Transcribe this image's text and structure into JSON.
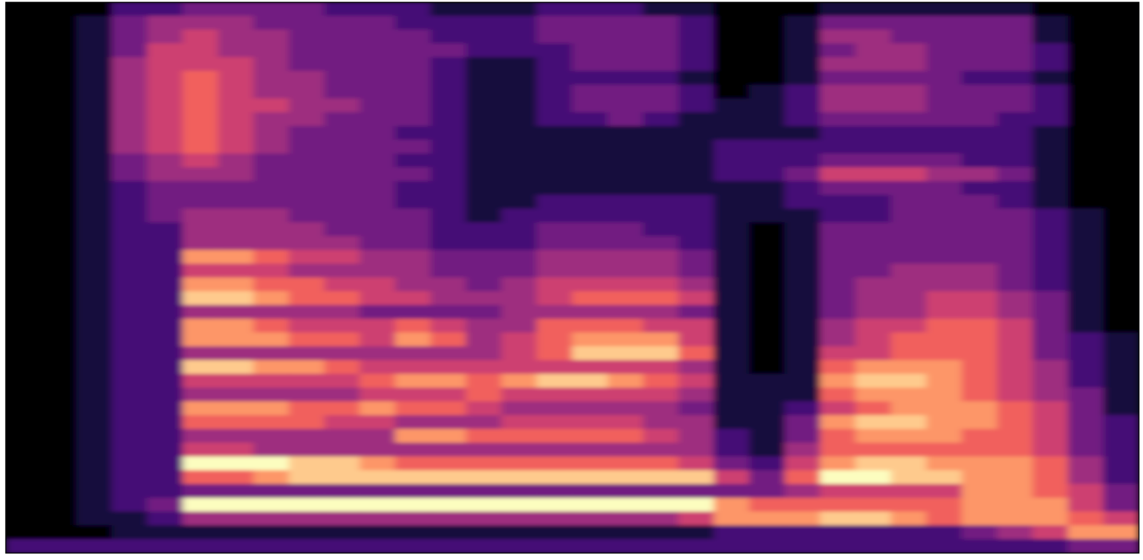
{
  "chart_data": {
    "type": "heatmap",
    "tick_labels": false,
    "zlim": [
      0,
      9
    ],
    "values": [
      [
        0,
        0,
        0,
        2,
        2,
        3,
        3,
        3,
        3,
        2,
        2,
        2,
        1,
        1,
        1,
        2,
        2,
        2,
        1,
        1,
        0,
        0,
        0,
        1,
        1,
        1,
        1,
        1,
        1,
        0,
        0,
        0
      ],
      [
        0,
        0,
        1,
        3,
        4,
        4,
        4,
        3,
        3,
        3,
        3,
        2,
        2,
        2,
        2,
        3,
        3,
        3,
        3,
        2,
        0,
        0,
        1,
        3,
        3,
        3,
        3,
        3,
        3,
        1,
        0,
        0
      ],
      [
        0,
        0,
        1,
        3,
        4,
        5,
        4,
        4,
        3,
        3,
        3,
        3,
        2,
        2,
        2,
        3,
        3,
        3,
        3,
        2,
        0,
        0,
        1,
        4,
        4,
        3,
        3,
        3,
        3,
        1,
        0,
        0
      ],
      [
        0,
        0,
        1,
        3,
        5,
        5,
        4,
        4,
        3,
        3,
        3,
        3,
        3,
        2,
        2,
        2,
        3,
        3,
        3,
        2,
        0,
        0,
        1,
        3,
        4,
        4,
        3,
        3,
        3,
        2,
        0,
        0
      ],
      [
        0,
        0,
        1,
        4,
        5,
        5,
        5,
        4,
        3,
        3,
        3,
        3,
        2,
        1,
        1,
        2,
        3,
        3,
        3,
        2,
        0,
        0,
        1,
        4,
        4,
        4,
        3,
        3,
        3,
        2,
        0,
        0
      ],
      [
        0,
        0,
        1,
        4,
        5,
        6,
        5,
        4,
        4,
        3,
        3,
        3,
        2,
        1,
        1,
        2,
        2,
        2,
        2,
        1,
        0,
        0,
        1,
        3,
        3,
        3,
        3,
        2,
        2,
        1,
        0,
        0
      ],
      [
        0,
        0,
        1,
        4,
        5,
        6,
        5,
        4,
        4,
        3,
        3,
        3,
        2,
        1,
        1,
        2,
        3,
        3,
        3,
        2,
        0,
        1,
        2,
        4,
        4,
        4,
        3,
        3,
        3,
        2,
        0,
        0
      ],
      [
        0,
        0,
        1,
        4,
        5,
        6,
        5,
        5,
        4,
        4,
        3,
        3,
        2,
        1,
        1,
        2,
        3,
        3,
        3,
        2,
        1,
        1,
        2,
        4,
        4,
        4,
        3,
        3,
        3,
        2,
        0,
        0
      ],
      [
        0,
        0,
        1,
        4,
        5,
        6,
        5,
        4,
        4,
        3,
        3,
        3,
        2,
        1,
        1,
        2,
        2,
        3,
        2,
        1,
        1,
        1,
        2,
        3,
        3,
        3,
        3,
        3,
        2,
        2,
        0,
        0
      ],
      [
        0,
        0,
        1,
        4,
        5,
        6,
        5,
        4,
        3,
        3,
        3,
        2,
        2,
        1,
        1,
        1,
        1,
        1,
        1,
        1,
        1,
        1,
        1,
        2,
        2,
        2,
        2,
        2,
        2,
        1,
        0,
        0
      ],
      [
        0,
        0,
        1,
        4,
        5,
        6,
        5,
        4,
        3,
        3,
        3,
        3,
        2,
        1,
        1,
        1,
        1,
        1,
        1,
        1,
        2,
        2,
        2,
        2,
        2,
        2,
        2,
        2,
        2,
        1,
        0,
        0
      ],
      [
        0,
        0,
        1,
        3,
        4,
        5,
        4,
        3,
        3,
        3,
        3,
        2,
        2,
        1,
        1,
        1,
        1,
        1,
        1,
        1,
        2,
        2,
        2,
        3,
        3,
        3,
        3,
        2,
        2,
        1,
        0,
        0
      ],
      [
        0,
        0,
        1,
        3,
        4,
        4,
        4,
        3,
        3,
        3,
        3,
        3,
        2,
        1,
        1,
        1,
        1,
        1,
        1,
        1,
        2,
        2,
        3,
        5,
        5,
        5,
        4,
        4,
        3,
        1,
        0,
        0
      ],
      [
        0,
        0,
        1,
        2,
        3,
        3,
        3,
        3,
        3,
        3,
        3,
        2,
        2,
        1,
        1,
        1,
        1,
        1,
        1,
        1,
        1,
        1,
        2,
        3,
        3,
        3,
        3,
        2,
        2,
        1,
        0,
        0
      ],
      [
        0,
        0,
        1,
        2,
        3,
        3,
        3,
        3,
        3,
        3,
        3,
        2,
        2,
        1,
        1,
        2,
        2,
        2,
        2,
        2,
        1,
        1,
        2,
        2,
        2,
        3,
        3,
        3,
        2,
        1,
        0,
        0
      ],
      [
        0,
        0,
        1,
        2,
        3,
        4,
        4,
        4,
        3,
        3,
        3,
        3,
        2,
        1,
        2,
        2,
        2,
        2,
        2,
        2,
        1,
        1,
        1,
        2,
        2,
        3,
        3,
        3,
        3,
        2,
        1,
        0
      ],
      [
        0,
        0,
        1,
        2,
        2,
        4,
        4,
        4,
        4,
        3,
        3,
        3,
        2,
        2,
        2,
        3,
        3,
        3,
        2,
        2,
        1,
        0,
        1,
        3,
        3,
        3,
        3,
        3,
        3,
        2,
        1,
        0
      ],
      [
        0,
        0,
        1,
        2,
        2,
        4,
        4,
        4,
        4,
        4,
        3,
        3,
        2,
        2,
        2,
        3,
        3,
        3,
        3,
        2,
        1,
        0,
        1,
        3,
        3,
        3,
        3,
        3,
        3,
        2,
        1,
        0
      ],
      [
        0,
        0,
        1,
        2,
        2,
        7,
        7,
        6,
        5,
        5,
        4,
        4,
        3,
        3,
        3,
        4,
        4,
        4,
        4,
        3,
        1,
        0,
        1,
        3,
        3,
        3,
        3,
        3,
        3,
        2,
        1,
        0
      ],
      [
        0,
        0,
        1,
        2,
        2,
        5,
        5,
        5,
        4,
        4,
        4,
        4,
        3,
        3,
        3,
        4,
        4,
        4,
        4,
        3,
        1,
        0,
        1,
        3,
        3,
        4,
        4,
        4,
        3,
        2,
        1,
        0
      ],
      [
        0,
        0,
        1,
        2,
        2,
        7,
        7,
        6,
        6,
        5,
        5,
        4,
        4,
        3,
        4,
        5,
        5,
        5,
        5,
        4,
        1,
        0,
        1,
        3,
        4,
        4,
        4,
        4,
        3,
        2,
        1,
        0
      ],
      [
        0,
        0,
        1,
        2,
        2,
        8,
        8,
        7,
        6,
        6,
        5,
        5,
        4,
        4,
        4,
        5,
        6,
        6,
        6,
        5,
        1,
        0,
        1,
        3,
        4,
        4,
        5,
        5,
        4,
        3,
        1,
        0
      ],
      [
        0,
        0,
        1,
        2,
        2,
        4,
        4,
        4,
        4,
        4,
        3,
        3,
        3,
        3,
        4,
        4,
        4,
        4,
        4,
        3,
        1,
        0,
        1,
        3,
        4,
        4,
        5,
        5,
        4,
        3,
        1,
        0
      ],
      [
        0,
        0,
        1,
        2,
        2,
        7,
        7,
        6,
        5,
        5,
        5,
        6,
        5,
        4,
        4,
        6,
        6,
        6,
        5,
        5,
        1,
        0,
        1,
        4,
        5,
        5,
        6,
        6,
        5,
        3,
        1,
        0
      ],
      [
        0,
        0,
        1,
        2,
        2,
        7,
        7,
        7,
        6,
        6,
        5,
        7,
        6,
        4,
        5,
        6,
        7,
        7,
        7,
        5,
        1,
        0,
        1,
        4,
        5,
        6,
        6,
        6,
        5,
        3,
        2,
        1
      ],
      [
        0,
        0,
        1,
        2,
        2,
        4,
        4,
        4,
        4,
        4,
        4,
        4,
        4,
        4,
        5,
        6,
        8,
        8,
        8,
        6,
        1,
        0,
        1,
        5,
        5,
        6,
        6,
        6,
        5,
        3,
        2,
        1
      ],
      [
        0,
        0,
        1,
        2,
        2,
        8,
        8,
        7,
        7,
        6,
        5,
        5,
        5,
        5,
        5,
        5,
        5,
        5,
        5,
        4,
        1,
        0,
        1,
        6,
        7,
        7,
        7,
        6,
        5,
        4,
        2,
        1
      ],
      [
        0,
        0,
        1,
        2,
        2,
        5,
        5,
        5,
        5,
        5,
        6,
        7,
        7,
        6,
        7,
        8,
        8,
        7,
        6,
        5,
        1,
        1,
        1,
        7,
        8,
        8,
        7,
        6,
        5,
        4,
        2,
        1
      ],
      [
        0,
        0,
        1,
        2,
        2,
        4,
        4,
        4,
        4,
        4,
        5,
        5,
        5,
        6,
        5,
        5,
        5,
        5,
        5,
        4,
        1,
        1,
        1,
        6,
        7,
        7,
        7,
        6,
        5,
        4,
        3,
        1
      ],
      [
        0,
        0,
        1,
        2,
        2,
        7,
        7,
        7,
        6,
        6,
        7,
        6,
        6,
        5,
        4,
        4,
        4,
        4,
        4,
        3,
        1,
        1,
        2,
        5,
        6,
        7,
        7,
        7,
        6,
        5,
        3,
        1
      ],
      [
        0,
        0,
        1,
        2,
        2,
        6,
        6,
        6,
        6,
        5,
        5,
        4,
        4,
        4,
        5,
        5,
        5,
        5,
        4,
        4,
        1,
        1,
        3,
        7,
        8,
        8,
        7,
        7,
        6,
        5,
        3,
        2
      ],
      [
        0,
        0,
        1,
        2,
        2,
        4,
        4,
        4,
        4,
        4,
        4,
        7,
        7,
        6,
        6,
        6,
        6,
        6,
        5,
        4,
        2,
        1,
        3,
        6,
        7,
        7,
        7,
        6,
        6,
        5,
        3,
        2
      ],
      [
        0,
        0,
        1,
        2,
        2,
        5,
        5,
        4,
        4,
        4,
        4,
        4,
        4,
        4,
        4,
        4,
        4,
        4,
        4,
        4,
        2,
        1,
        4,
        6,
        6,
        6,
        6,
        6,
        6,
        5,
        3,
        2
      ],
      [
        0,
        0,
        1,
        2,
        2,
        9,
        9,
        9,
        8,
        8,
        7,
        6,
        6,
        6,
        6,
        6,
        6,
        6,
        6,
        5,
        3,
        2,
        5,
        7,
        8,
        8,
        7,
        7,
        7,
        6,
        4,
        2
      ],
      [
        0,
        0,
        1,
        2,
        2,
        6,
        6,
        7,
        8,
        8,
        8,
        8,
        8,
        8,
        8,
        8,
        8,
        8,
        8,
        8,
        5,
        3,
        6,
        9,
        9,
        8,
        8,
        7,
        7,
        6,
        4,
        2
      ],
      [
        0,
        0,
        1,
        2,
        2,
        3,
        3,
        3,
        3,
        3,
        3,
        3,
        3,
        3,
        3,
        3,
        3,
        3,
        3,
        3,
        3,
        3,
        4,
        5,
        5,
        5,
        5,
        7,
        7,
        6,
        5,
        3
      ],
      [
        0,
        0,
        1,
        2,
        3,
        9,
        9,
        9,
        9,
        9,
        9,
        9,
        9,
        9,
        9,
        9,
        9,
        9,
        9,
        9,
        7,
        6,
        6,
        6,
        6,
        6,
        6,
        7,
        7,
        7,
        5,
        3
      ],
      [
        0,
        0,
        1,
        1,
        2,
        4,
        4,
        4,
        4,
        4,
        4,
        4,
        4,
        4,
        4,
        4,
        4,
        4,
        4,
        5,
        7,
        7,
        7,
        8,
        8,
        7,
        6,
        7,
        7,
        7,
        6,
        5
      ],
      [
        0,
        0,
        0,
        1,
        1,
        1,
        1,
        1,
        1,
        1,
        1,
        1,
        1,
        1,
        1,
        1,
        1,
        1,
        1,
        1,
        2,
        2,
        2,
        2,
        2,
        2,
        2,
        3,
        4,
        5,
        7,
        7
      ],
      [
        2,
        2,
        2,
        2,
        2,
        2,
        2,
        2,
        2,
        2,
        2,
        2,
        2,
        2,
        2,
        2,
        2,
        2,
        2,
        2,
        2,
        2,
        2,
        2,
        2,
        2,
        2,
        2,
        2,
        2,
        3,
        3
      ]
    ]
  }
}
